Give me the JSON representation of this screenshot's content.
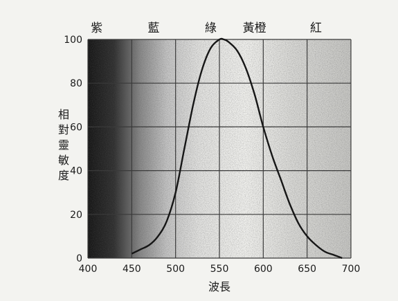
{
  "chart_data": {
    "type": "line",
    "title": "",
    "xlabel": "波長",
    "ylabel": "相對靈敏度",
    "xlim": [
      400,
      700
    ],
    "ylim": [
      0,
      100
    ],
    "x_ticks": [
      400,
      450,
      500,
      550,
      600,
      650,
      700
    ],
    "y_ticks": [
      0,
      20,
      40,
      60,
      80,
      100
    ],
    "grid": true,
    "color_bands": [
      {
        "label": "紫",
        "x": 410
      },
      {
        "label": "藍",
        "x": 475
      },
      {
        "label": "綠",
        "x": 540
      },
      {
        "label": "黃橙",
        "x": 590
      },
      {
        "label": "紅",
        "x": 660
      }
    ],
    "series": [
      {
        "x": [
          450,
          460,
          470,
          480,
          490,
          500,
          510,
          520,
          530,
          540,
          550,
          555,
          560,
          570,
          580,
          590,
          600,
          610,
          620,
          630,
          640,
          650,
          660,
          670,
          680,
          690
        ],
        "y": [
          2,
          4,
          6,
          10,
          17,
          30,
          50,
          70,
          86,
          96,
          100,
          100,
          99,
          95,
          87,
          75,
          60,
          47,
          36,
          25,
          16,
          10,
          6,
          3,
          1.5,
          0
        ]
      }
    ]
  },
  "colors": {
    "ink": "#161616",
    "paper": "#f3f3f0"
  }
}
